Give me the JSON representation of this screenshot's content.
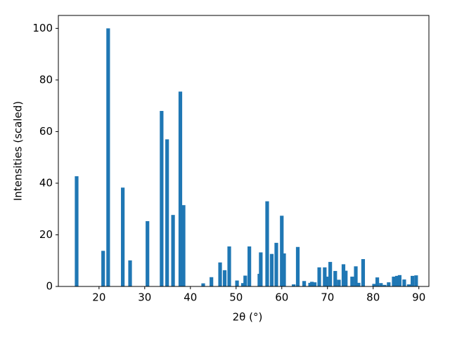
{
  "chart_data": {
    "type": "bar",
    "x_label": "2θ (°)",
    "y_label": "Intensities (scaled)",
    "x": [
      15.1,
      20.9,
      22.0,
      25.2,
      26.8,
      30.6,
      33.7,
      34.9,
      36.2,
      37.8,
      38.5,
      42.8,
      44.6,
      46.5,
      47.5,
      48.5,
      50.2,
      51.5,
      52.0,
      52.9,
      55.1,
      55.4,
      56.8,
      57.8,
      58.8,
      60.0,
      60.5,
      62.6,
      63.5,
      64.9,
      66.2,
      66.6,
      67.2,
      68.2,
      69.4,
      69.8,
      70.6,
      71.7,
      72.5,
      73.5,
      74.0,
      75.4,
      76.2,
      76.8,
      77.8,
      80.2,
      80.9,
      81.7,
      82.5,
      83.4,
      84.5,
      85.2,
      85.8,
      86.8,
      87.8,
      88.6,
      89.4
    ],
    "values": [
      42.7,
      13.8,
      100,
      38.3,
      10.1,
      25.3,
      68,
      57,
      27.7,
      75.5,
      31.5,
      1.2,
      3.6,
      9.3,
      6.3,
      15.5,
      2.3,
      1.3,
      4.2,
      15.5,
      4.9,
      13.2,
      33,
      12.6,
      16.9,
      27.4,
      12.8,
      0.8,
      15.3,
      2.1,
      1.4,
      1.8,
      1.6,
      7.4,
      7.4,
      3.8,
      9.5,
      6.0,
      2.6,
      8.6,
      6.1,
      3.8,
      7.8,
      1.4,
      10.6,
      1.0,
      3.5,
      1.3,
      0.6,
      1.6,
      3.8,
      4.1,
      4.4,
      2.7,
      0.8,
      4.1,
      4.3
    ],
    "color": "#1f77b4",
    "xlim": [
      11.1,
      92.2
    ],
    "xticks": [
      20,
      30,
      40,
      50,
      60,
      70,
      80,
      90
    ],
    "ylim": [
      0,
      105
    ],
    "yticks": [
      0,
      20,
      40,
      60,
      80,
      100
    ]
  }
}
